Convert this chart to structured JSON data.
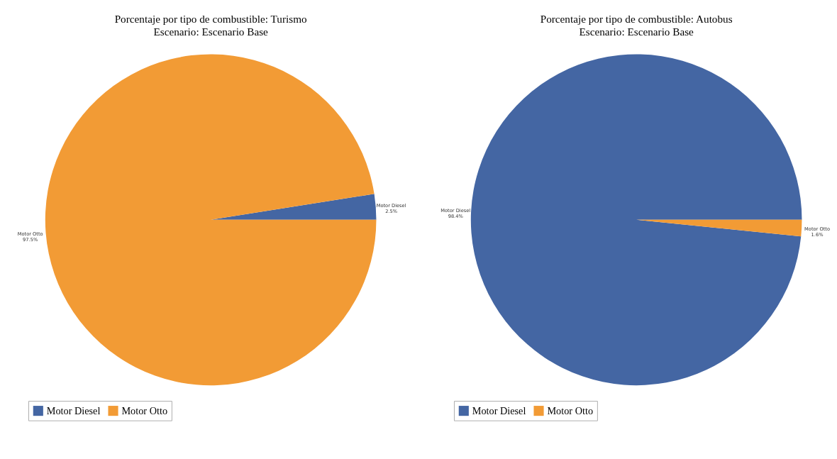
{
  "chart_data": [
    {
      "type": "pie",
      "title": "Porcentaje por tipo de combustible: Turismo",
      "subtitle": "Escenario: Escenario Base",
      "categories": [
        "Motor Diesel",
        "Motor Otto"
      ],
      "values": [
        2.5,
        97.5
      ],
      "colors": [
        "#4466a3",
        "#f29b35"
      ],
      "value_labels": [
        "2.5%",
        "97.5%"
      ],
      "legend": "bottom"
    },
    {
      "type": "pie",
      "title": "Porcentaje por tipo de combustible: Autobus",
      "subtitle": "Escenario: Escenario Base",
      "categories": [
        "Motor Diesel",
        "Motor Otto"
      ],
      "values": [
        98.4,
        1.6
      ],
      "colors": [
        "#4466a3",
        "#f29b35"
      ],
      "value_labels": [
        "98.4%",
        "1.6%"
      ],
      "legend": "bottom"
    }
  ]
}
